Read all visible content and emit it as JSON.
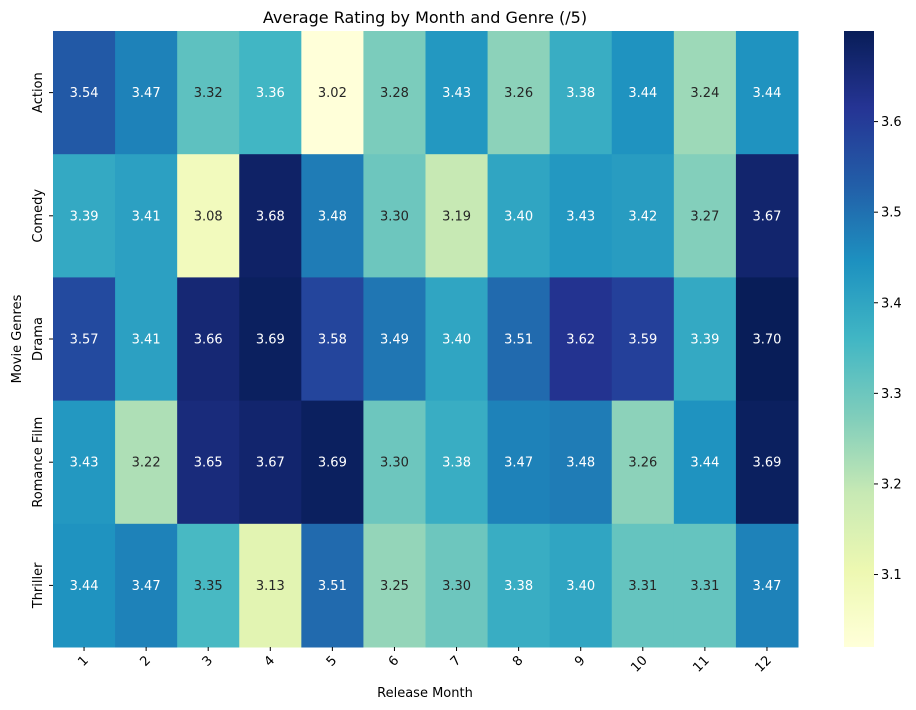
{
  "chart_data": {
    "type": "heatmap",
    "title": "Average Rating by Month and Genre (/5)",
    "xlabel": "Release Month",
    "ylabel": "Movie Genres",
    "x_categories": [
      "1",
      "2",
      "3",
      "4",
      "5",
      "6",
      "7",
      "8",
      "9",
      "10",
      "11",
      "12"
    ],
    "y_categories": [
      "Action",
      "Comedy",
      "Drama",
      "Romance Film",
      "Thriller"
    ],
    "values": [
      [
        3.54,
        3.47,
        3.32,
        3.36,
        3.02,
        3.28,
        3.43,
        3.26,
        3.38,
        3.44,
        3.24,
        3.44
      ],
      [
        3.39,
        3.41,
        3.08,
        3.68,
        3.48,
        3.3,
        3.19,
        3.4,
        3.43,
        3.42,
        3.27,
        3.67
      ],
      [
        3.57,
        3.41,
        3.66,
        3.69,
        3.58,
        3.49,
        3.4,
        3.51,
        3.62,
        3.59,
        3.39,
        3.7
      ],
      [
        3.43,
        3.22,
        3.65,
        3.67,
        3.69,
        3.3,
        3.38,
        3.47,
        3.48,
        3.26,
        3.44,
        3.69
      ],
      [
        3.44,
        3.47,
        3.35,
        3.13,
        3.51,
        3.25,
        3.3,
        3.38,
        3.4,
        3.31,
        3.31,
        3.47
      ]
    ],
    "colormap": "YlGnBu",
    "vmin": 3.02,
    "vmax": 3.7,
    "colorbar_ticks": [
      "3.1",
      "3.2",
      "3.3",
      "3.4",
      "3.5",
      "3.6"
    ],
    "grid": false,
    "legend": "colorbar-right"
  }
}
